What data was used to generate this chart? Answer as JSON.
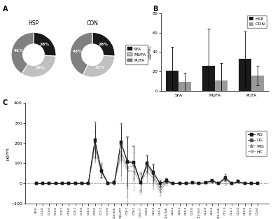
{
  "pie_hsp": [
    26,
    33,
    41
  ],
  "pie_con": [
    26,
    31,
    43
  ],
  "pie_hsp_labels": [
    "26%",
    "33%",
    "41%"
  ],
  "pie_con_labels": [
    "26%",
    "31%",
    "43%"
  ],
  "pie_colors": [
    "#1a1a1a",
    "#c0c0c0",
    "#808080"
  ],
  "pie_legend": [
    "SFA",
    "MUFA",
    "PUFA"
  ],
  "bar_categories": [
    "SFA",
    "MUFA",
    "PUFA"
  ],
  "bar_hsp_values": [
    21,
    26,
    33
  ],
  "bar_hsp_errors": [
    24,
    38,
    28
  ],
  "bar_con_values": [
    9,
    11,
    16
  ],
  "bar_con_errors": [
    10,
    18,
    10
  ],
  "bar_colors_hsp": "#1a1a1a",
  "bar_colors_con": "#999999",
  "bar_ylabel": "μg/mL",
  "bar_ylim": [
    0,
    80
  ],
  "bar_yticks": [
    0,
    20,
    40,
    60,
    80
  ],
  "x_labels": [
    "C8:0",
    "C11:0",
    "C12:0",
    "C13:0",
    "C14:1",
    "C14:0",
    "C15:1",
    "C15:0",
    "C16:1",
    "C16:0",
    "C17:1",
    "C17:0",
    "C18:3n6",
    "C16:2TT",
    "C18:1",
    "C18:2",
    "C16:1T",
    "C18:0",
    "C20:4",
    "C20:5",
    "C20:3n6",
    "C20:2",
    "C20:1",
    "C20:0",
    "C21:0",
    "C22:5n3",
    "C22:6",
    "C22:4",
    "C22:5n6",
    "C22:2",
    "C22:1",
    "C22:0",
    "C23:0",
    "C24:1",
    "C24:0"
  ],
  "line_RG": [
    0,
    0,
    0,
    0,
    0,
    0.5,
    0,
    0,
    1,
    215,
    65,
    2,
    5,
    205,
    110,
    105,
    5,
    100,
    55,
    0,
    15,
    0,
    0,
    0,
    5,
    0,
    5,
    15,
    0,
    30,
    0,
    10,
    0,
    0,
    0
  ],
  "line_UG": [
    0,
    0,
    0,
    0,
    0,
    0.5,
    0,
    0,
    1,
    210,
    60,
    2,
    5,
    200,
    105,
    100,
    5,
    95,
    50,
    0,
    12,
    0,
    0,
    0,
    5,
    0,
    5,
    12,
    0,
    25,
    0,
    10,
    0,
    0,
    0
  ],
  "line_WG": [
    0,
    0,
    0,
    0,
    0,
    0.5,
    0,
    0,
    1,
    180,
    55,
    2,
    3,
    160,
    80,
    90,
    5,
    85,
    40,
    -25,
    10,
    0,
    0,
    0,
    5,
    0,
    4,
    10,
    0,
    20,
    0,
    10,
    0,
    0,
    0
  ],
  "line_HC": [
    0,
    0,
    0,
    0,
    0,
    0.5,
    0,
    0,
    1,
    190,
    58,
    2,
    4,
    140,
    65,
    60,
    2,
    60,
    25,
    -40,
    8,
    0,
    0,
    0,
    4,
    0,
    3,
    8,
    0,
    0,
    0,
    5,
    0,
    0,
    0
  ],
  "err_RG": [
    0,
    0,
    0,
    0,
    0,
    0.2,
    0,
    0,
    0.5,
    90,
    35,
    1,
    10,
    90,
    120,
    80,
    40,
    40,
    40,
    15,
    10,
    0,
    0,
    0,
    2,
    0,
    3,
    5,
    0,
    15,
    0,
    5,
    0,
    0,
    0
  ],
  "err_UG": [
    0,
    0,
    0,
    0,
    0,
    0.2,
    0,
    0,
    0.5,
    80,
    30,
    1,
    8,
    100,
    130,
    85,
    45,
    45,
    45,
    18,
    12,
    0,
    0,
    0,
    2,
    0,
    3,
    5,
    0,
    12,
    0,
    5,
    0,
    0,
    0
  ],
  "err_WG": [
    0,
    0,
    0,
    0,
    0,
    0.2,
    0,
    0,
    0.5,
    75,
    25,
    1,
    6,
    120,
    150,
    90,
    50,
    50,
    50,
    20,
    14,
    0,
    0,
    0,
    2,
    0,
    3,
    4,
    0,
    10,
    0,
    5,
    0,
    0,
    0
  ],
  "err_HC": [
    0,
    0,
    0,
    0,
    0,
    0.2,
    0,
    0,
    0.5,
    70,
    20,
    1,
    5,
    130,
    160,
    95,
    55,
    55,
    55,
    22,
    16,
    0,
    0,
    0,
    2,
    0,
    3,
    4,
    0,
    8,
    0,
    5,
    0,
    0,
    0
  ],
  "line_ylim": [
    -100,
    400
  ],
  "line_yticks": [
    -100,
    0,
    100,
    200,
    300,
    400
  ],
  "line_ylabel": "μg/mL",
  "bg_color": "#ffffff",
  "text_color": "#000000",
  "colors_c": [
    "#1a1a1a",
    "#555555",
    "#888888",
    "#aaaaaa"
  ],
  "markers_c": [
    "s",
    "s",
    "^",
    "<"
  ],
  "labels_c": [
    "RG",
    "UG",
    "WG",
    "HC"
  ]
}
